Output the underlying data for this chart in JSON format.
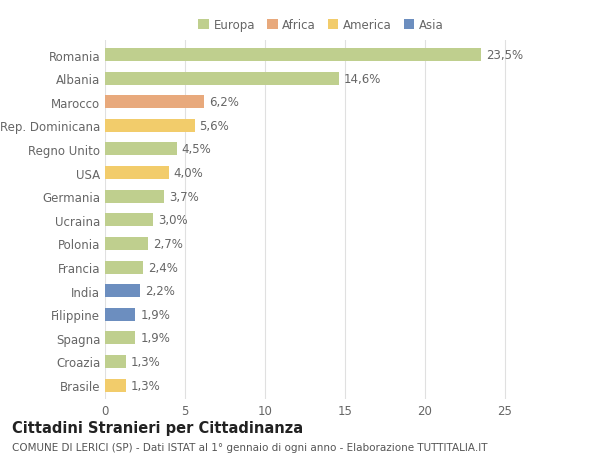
{
  "categories": [
    "Brasile",
    "Croazia",
    "Spagna",
    "Filippine",
    "India",
    "Francia",
    "Polonia",
    "Ucraina",
    "Germania",
    "USA",
    "Regno Unito",
    "Rep. Dominicana",
    "Marocco",
    "Albania",
    "Romania"
  ],
  "values": [
    1.3,
    1.3,
    1.9,
    1.9,
    2.2,
    2.4,
    2.7,
    3.0,
    3.7,
    4.0,
    4.5,
    5.6,
    6.2,
    14.6,
    23.5
  ],
  "labels": [
    "1,3%",
    "1,3%",
    "1,9%",
    "1,9%",
    "2,2%",
    "2,4%",
    "2,7%",
    "3,0%",
    "3,7%",
    "4,0%",
    "4,5%",
    "5,6%",
    "6,2%",
    "14,6%",
    "23,5%"
  ],
  "colors": [
    "#f2cc6b",
    "#bfcf8e",
    "#bfcf8e",
    "#6c8ebf",
    "#6c8ebf",
    "#bfcf8e",
    "#bfcf8e",
    "#bfcf8e",
    "#bfcf8e",
    "#f2cc6b",
    "#bfcf8e",
    "#f2cc6b",
    "#e8a97c",
    "#bfcf8e",
    "#bfcf8e"
  ],
  "legend_labels": [
    "Europa",
    "Africa",
    "America",
    "Asia"
  ],
  "legend_colors": [
    "#bfcf8e",
    "#e8a97c",
    "#f2cc6b",
    "#6c8ebf"
  ],
  "title": "Cittadini Stranieri per Cittadinanza",
  "subtitle": "COMUNE DI LERICI (SP) - Dati ISTAT al 1° gennaio di ogni anno - Elaborazione TUTTITALIA.IT",
  "xlim": [
    0,
    27
  ],
  "xticks": [
    0,
    5,
    10,
    15,
    20,
    25
  ],
  "background_color": "#ffffff",
  "bar_height": 0.55,
  "grid_color": "#e0e0e0",
  "label_color": "#666666",
  "label_fontsize": 8.5,
  "tick_fontsize": 8.5,
  "title_fontsize": 10.5,
  "subtitle_fontsize": 7.5
}
